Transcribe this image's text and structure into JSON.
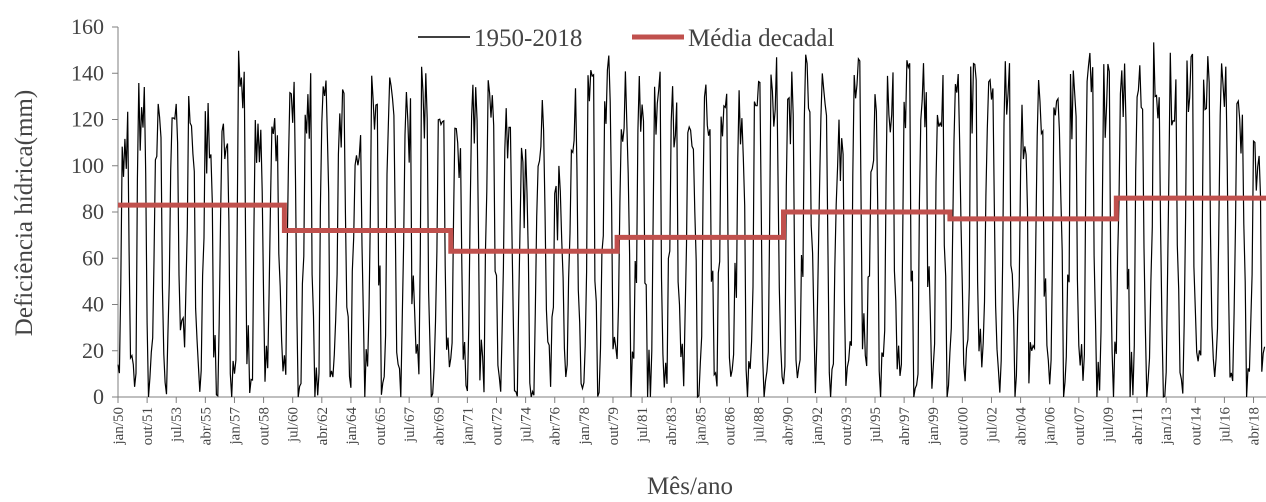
{
  "chart_data": {
    "type": "line",
    "title": "",
    "xlabel": "Mês/ano",
    "ylabel": "Deficiência hídrica(mm)",
    "ylim": [
      0,
      160
    ],
    "yticks": [
      0,
      20,
      40,
      60,
      80,
      100,
      120,
      140,
      160
    ],
    "legend_position": "top-center",
    "grid": false,
    "x_start": "jan/50",
    "x_end": "dez/18",
    "xtick_labels": [
      "jan/50",
      "out/51",
      "jul/53",
      "abr/55",
      "jan/57",
      "out/58",
      "jul/60",
      "abr/62",
      "jan/64",
      "out/65",
      "jul/67",
      "abr/69",
      "jan/71",
      "out/72",
      "jul/74",
      "abr/76",
      "jan/78",
      "out/79",
      "jul/81",
      "abr/83",
      "jan/85",
      "out/86",
      "jul/88",
      "abr/90",
      "jan/92",
      "out/93",
      "jul/95",
      "abr/97",
      "jan/99",
      "out/00",
      "jul/02",
      "abr/04",
      "jan/06",
      "out/07",
      "jul/09",
      "abr/11",
      "jan/13",
      "out/14",
      "jul/16",
      "abr/18"
    ],
    "series": [
      {
        "name": "1950-2018",
        "color": "#000000",
        "style": "thin-line",
        "description_values": "monthly values, 828 points, ranging 0 to ~155 mm",
        "yearly_max": [
          126,
          140,
          135,
          136,
          131,
          128,
          120,
          150,
          133,
          136,
          137,
          143,
          138,
          136,
          125,
          142,
          140,
          135,
          145,
          123,
          125,
          135,
          145,
          125,
          108,
          133,
          100,
          135,
          145,
          150,
          141,
          143,
          145,
          142,
          141,
          140,
          140,
          137,
          145,
          149,
          141,
          149,
          148,
          128,
          147,
          132,
          148,
          148,
          148,
          144,
          140,
          148,
          145,
          149,
          130,
          140,
          148,
          142,
          150,
          146,
          148,
          150,
          154,
          152,
          155,
          153,
          150,
          140,
          120
        ],
        "yearly_min": [
          0,
          0,
          0,
          10,
          0,
          0,
          0,
          0,
          0,
          0,
          0,
          0,
          0,
          0,
          0,
          0,
          0,
          0,
          0,
          0,
          0,
          0,
          0,
          0,
          0,
          0,
          0,
          0,
          0,
          0,
          0,
          0,
          0,
          0,
          0,
          0,
          0,
          0,
          0,
          0,
          0,
          0,
          0,
          0,
          0,
          0,
          0,
          0,
          0,
          0,
          0,
          0,
          0,
          0,
          0,
          0,
          0,
          0,
          0,
          0,
          0,
          0,
          0,
          0,
          0,
          0,
          0,
          0,
          0
        ]
      },
      {
        "name": "Média decadal",
        "color": "#c0504d",
        "style": "step-line",
        "segments": [
          {
            "from": "jan/50",
            "to": "dez/59",
            "value": 83
          },
          {
            "from": "jan/60",
            "to": "dez/69",
            "value": 72
          },
          {
            "from": "jan/70",
            "to": "dez/79",
            "value": 63
          },
          {
            "from": "jan/80",
            "to": "dez/89",
            "value": 69
          },
          {
            "from": "jan/90",
            "to": "dez/99",
            "value": 80
          },
          {
            "from": "jan/00",
            "to": "dez/09",
            "value": 77
          },
          {
            "from": "jan/10",
            "to": "dez/18",
            "value": 86
          }
        ]
      }
    ]
  }
}
